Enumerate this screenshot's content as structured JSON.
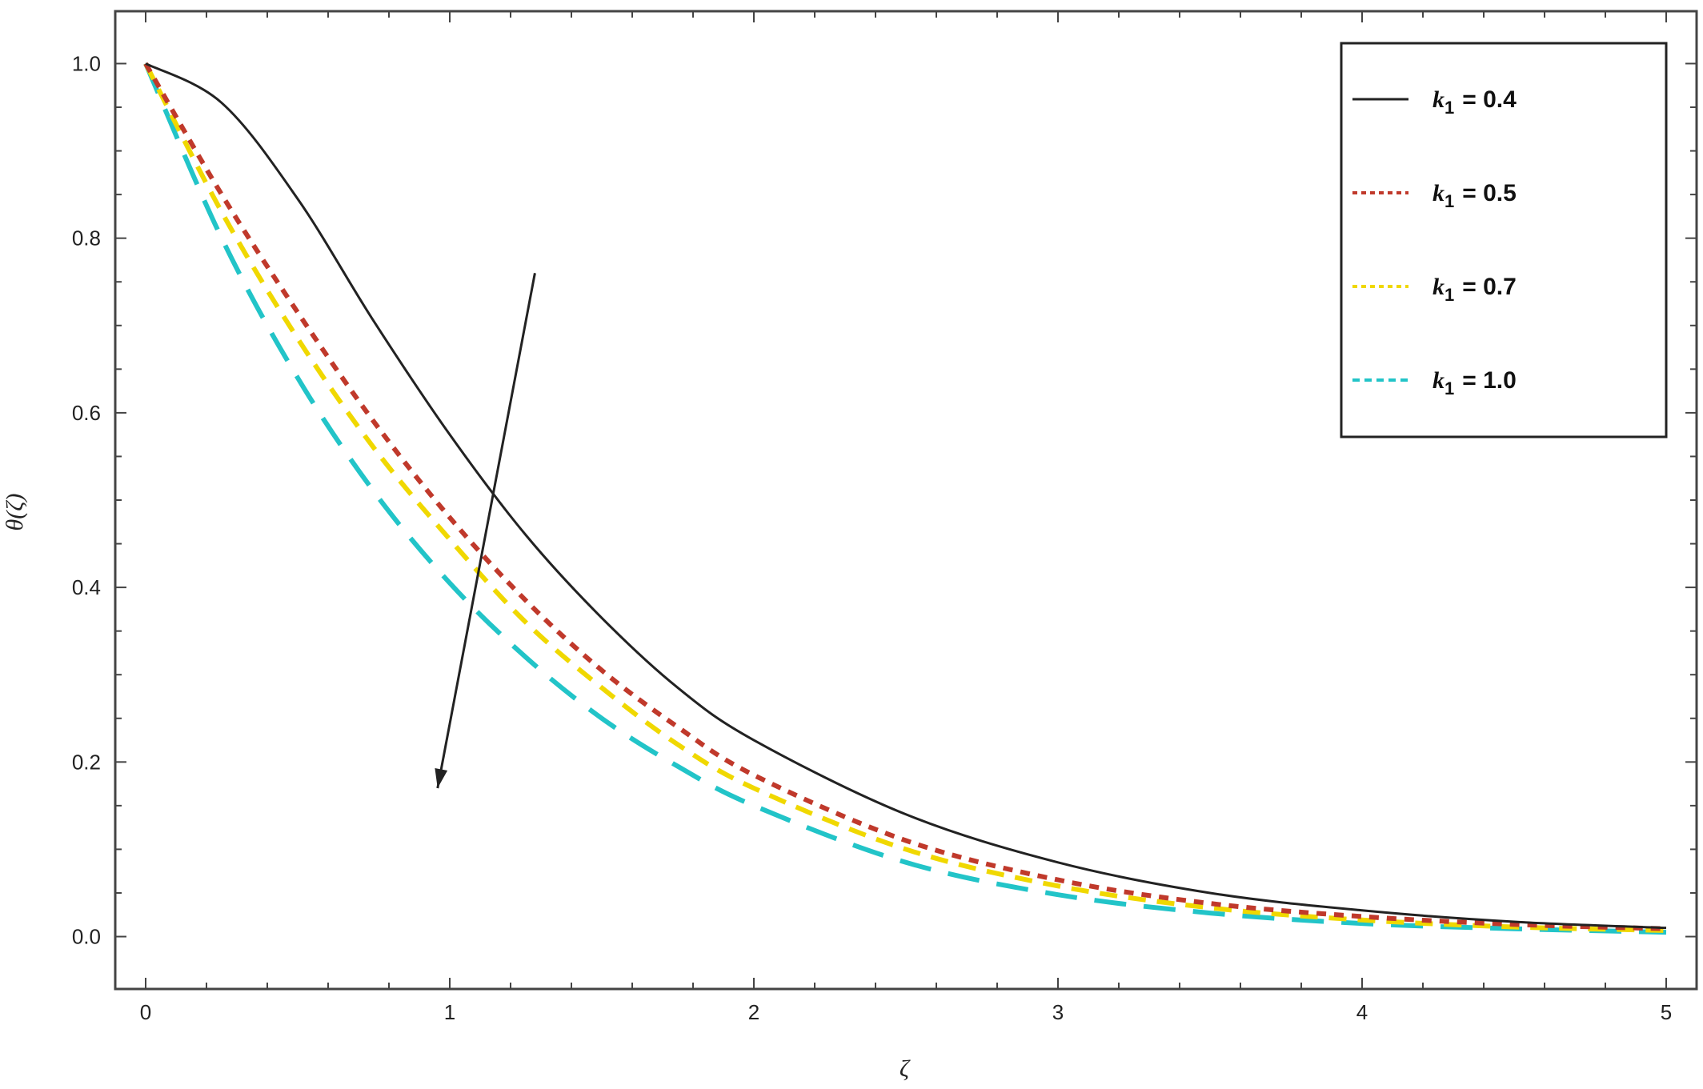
{
  "chart_data": {
    "type": "line",
    "xlabel": "ζ",
    "ylabel": "θ(ζ)",
    "xlim": [
      -0.1,
      5.1
    ],
    "ylim": [
      -0.06,
      1.06
    ],
    "x_ticks": [
      0,
      1,
      2,
      3,
      4,
      5
    ],
    "x_tick_labels": [
      "0",
      "1",
      "2",
      "3",
      "4",
      "5"
    ],
    "y_ticks": [
      0.0,
      0.2,
      0.4,
      0.6,
      0.8,
      1.0
    ],
    "y_tick_labels": [
      "0.0",
      "0.2",
      "0.4",
      "0.6",
      "0.8",
      "1.0"
    ],
    "grid": false,
    "legend_position": "top-right",
    "x": [
      0,
      0.25,
      0.5,
      0.75,
      1.0,
      1.25,
      1.5,
      1.75,
      2.0,
      2.5,
      3.0,
      3.5,
      4.0,
      4.5,
      5.0
    ],
    "series": [
      {
        "legend_var": "k",
        "legend_sub": "1",
        "legend_value": "= 0.4",
        "color": "#222222",
        "dash": "solid",
        "values": [
          1.0,
          0.955,
          0.845,
          0.705,
          0.575,
          0.46,
          0.365,
          0.285,
          0.225,
          0.14,
          0.085,
          0.05,
          0.03,
          0.017,
          0.01
        ]
      },
      {
        "legend_var": "k",
        "legend_sub": "1",
        "legend_value": "= 0.5",
        "color": "#c0392b",
        "dash": "short",
        "values": [
          1.0,
          0.85,
          0.715,
          0.59,
          0.48,
          0.385,
          0.305,
          0.24,
          0.185,
          0.11,
          0.065,
          0.038,
          0.023,
          0.014,
          0.009
        ]
      },
      {
        "legend_var": "k",
        "legend_sub": "1",
        "legend_value": "= 0.7",
        "color": "#f0d800",
        "dash": "medium",
        "values": [
          1.0,
          0.83,
          0.685,
          0.56,
          0.455,
          0.36,
          0.285,
          0.22,
          0.17,
          0.1,
          0.058,
          0.033,
          0.019,
          0.011,
          0.007
        ]
      },
      {
        "legend_var": "k",
        "legend_sub": "1",
        "legend_value": "= 1.0",
        "color": "#22c4c8",
        "dash": "long",
        "values": [
          1.0,
          0.8,
          0.64,
          0.51,
          0.405,
          0.32,
          0.25,
          0.195,
          0.15,
          0.085,
          0.048,
          0.027,
          0.015,
          0.009,
          0.005
        ]
      }
    ],
    "annotation_arrow": {
      "from": [
        1.28,
        0.76
      ],
      "to": [
        0.96,
        0.17
      ]
    }
  }
}
